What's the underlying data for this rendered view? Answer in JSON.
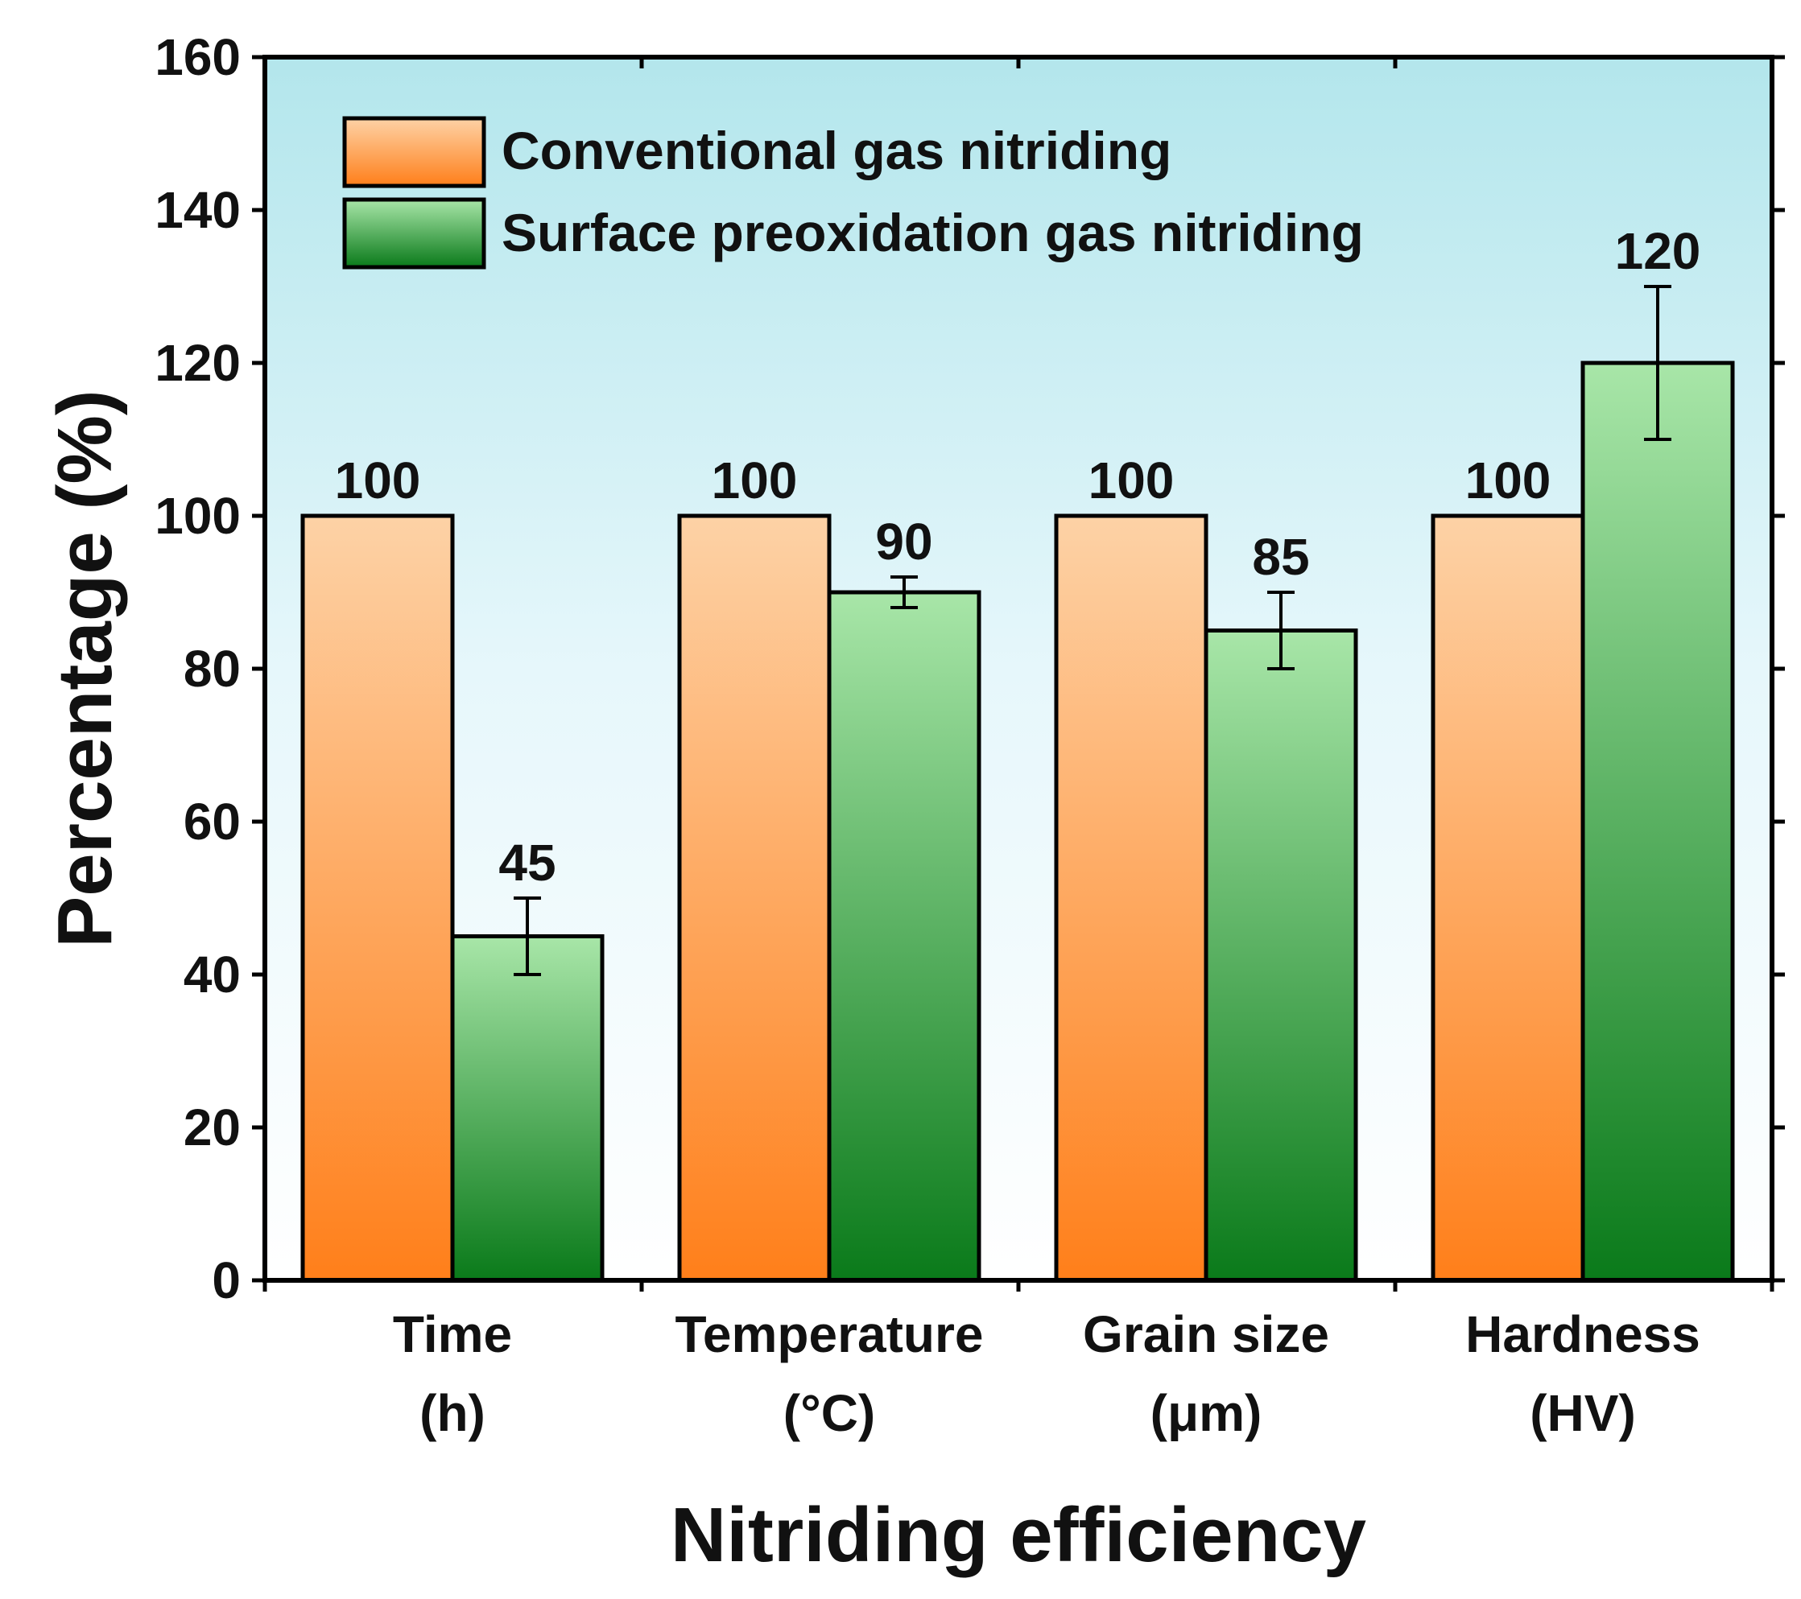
{
  "chart_data": {
    "type": "bar",
    "title": "",
    "xlabel": "Nitriding efficiency",
    "ylabel": "Percentage (%)",
    "ylim": [
      0,
      160
    ],
    "yticks": [
      0,
      20,
      40,
      60,
      80,
      100,
      120,
      140,
      160
    ],
    "categories": [
      {
        "line1": "Time",
        "line2": "(h)"
      },
      {
        "line1": "Temperature",
        "line2": "(°C)"
      },
      {
        "line1": "Grain size",
        "line2": "(μm)"
      },
      {
        "line1": "Hardness",
        "line2": "(HV)"
      }
    ],
    "series": [
      {
        "name": "Conventional gas nitriding",
        "values": [
          100,
          100,
          100,
          100
        ],
        "labels": [
          "100",
          "100",
          "100",
          "100"
        ],
        "errors": [
          null,
          null,
          null,
          null
        ],
        "color_top": "#fdd2a6",
        "color_bottom": "#ff7f1a"
      },
      {
        "name": "Surface preoxidation gas nitriding",
        "values": [
          45,
          90,
          85,
          120
        ],
        "labels": [
          "45",
          "90",
          "85",
          "120"
        ],
        "errors": [
          5,
          2,
          5,
          10
        ],
        "color_top": "#a8e6a8",
        "color_bottom": "#0a7a1a"
      }
    ],
    "legend_position": "top-left",
    "background_gradient": [
      "#b3e6ec",
      "#ffffff"
    ],
    "grid": false
  }
}
